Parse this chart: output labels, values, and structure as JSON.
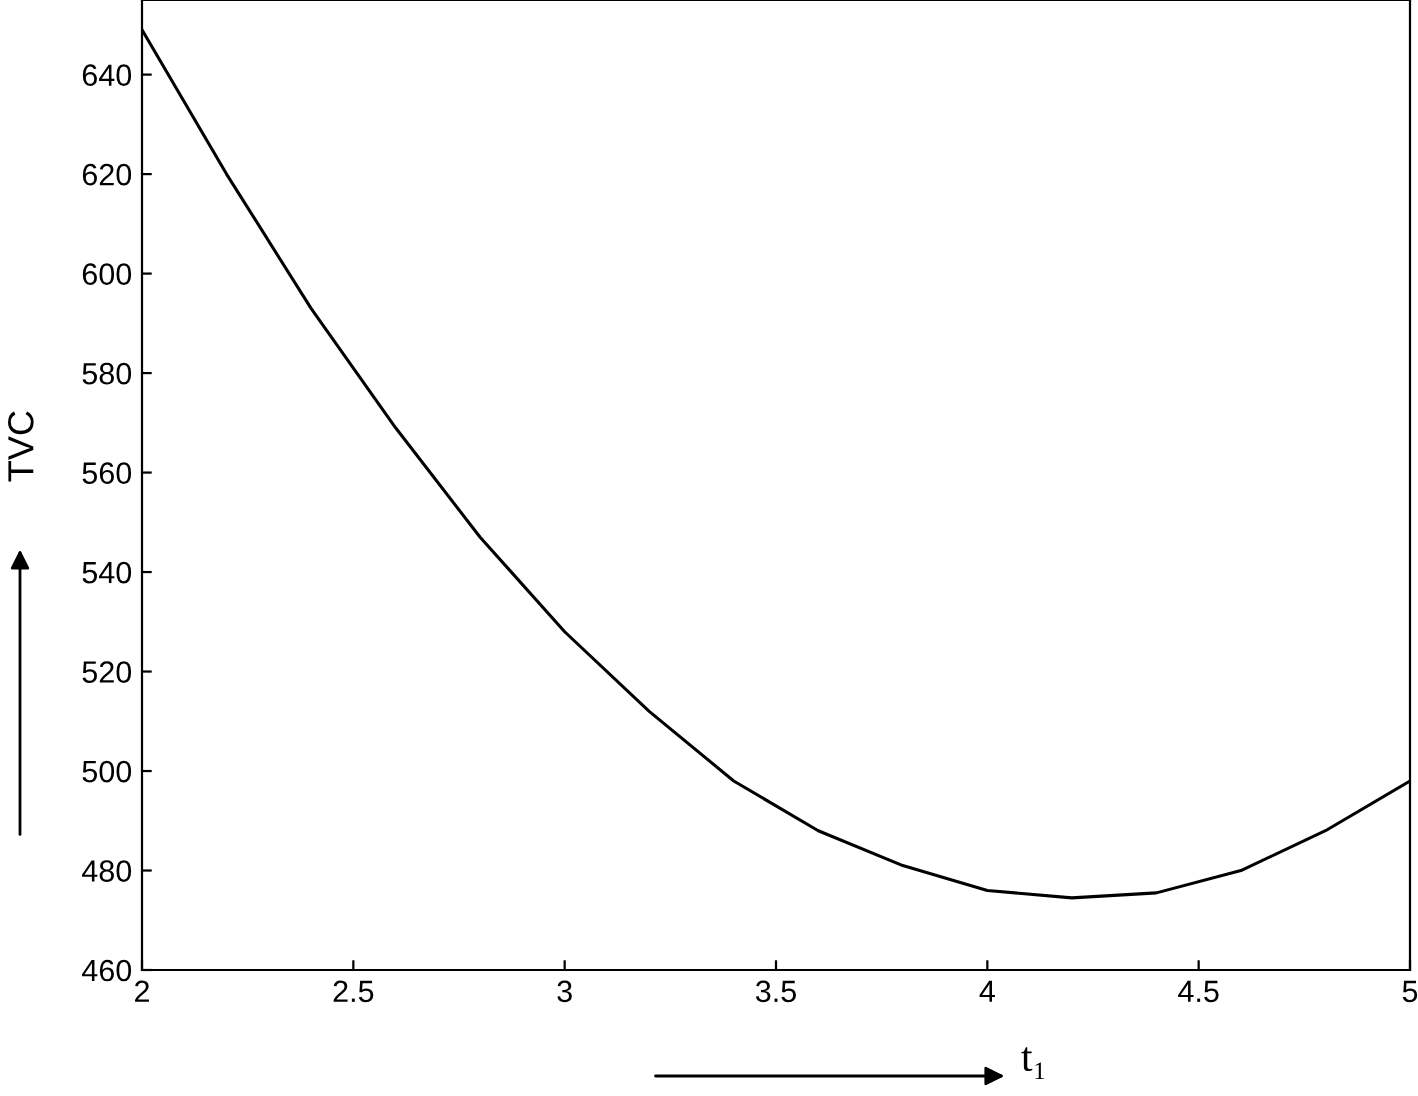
{
  "chart_data": {
    "type": "line",
    "xlabel": "t₁",
    "ylabel": "TVC",
    "x": [
      2.0,
      2.2,
      2.4,
      2.6,
      2.8,
      3.0,
      3.2,
      3.4,
      3.6,
      3.8,
      4.0,
      4.2,
      4.4,
      4.6,
      4.8,
      5.0
    ],
    "series": [
      {
        "color": "#000000",
        "values": [
          649,
          620,
          593,
          569,
          547,
          528,
          512,
          498,
          488,
          481,
          476,
          474.5,
          475.5,
          480,
          488,
          498
        ]
      }
    ],
    "xlim": [
      2,
      5
    ],
    "ylim": [
      460,
      655
    ],
    "xticks": [
      2,
      2.5,
      3,
      3.5,
      4,
      4.5,
      5
    ],
    "yticks": [
      460,
      480,
      500,
      520,
      540,
      560,
      580,
      600,
      620,
      640
    ],
    "grid": false,
    "legend": false,
    "marker": "none",
    "line_style": "solid"
  }
}
